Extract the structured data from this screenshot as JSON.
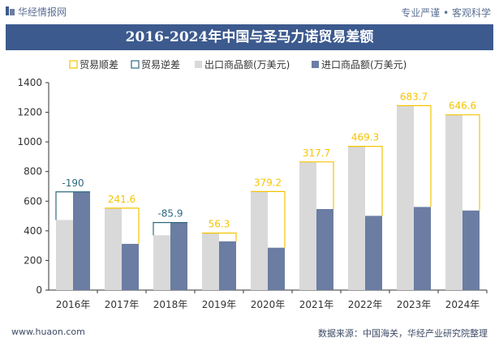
{
  "header": {
    "site_name": "华经情报网",
    "slogan": "专业严谨 • 客观科学"
  },
  "footer": {
    "website": "www.huaon.com",
    "source": "数据来源：中国海关，华经产业研究院整理"
  },
  "colors": {
    "title_bg": "#3c5a8e",
    "export_bar": "#d9d9d9",
    "import_bar": "#6b7da3",
    "surplus": "#f5c400",
    "deficit": "#2e6a7e"
  },
  "chart_data": {
    "type": "bar",
    "title": "2016-2024年中国与圣马力诺贸易差额",
    "categories": [
      "2016年",
      "2017年",
      "2018年",
      "2019年",
      "2020年",
      "2021年",
      "2022年",
      "2023年",
      "2024年"
    ],
    "legend": [
      "贸易顺差",
      "贸易逆差",
      "出口商品额(万美元)",
      "进口商品额(万美元)"
    ],
    "legend_position": "top",
    "ylim": [
      0,
      1400
    ],
    "yticks": [
      0,
      200,
      400,
      600,
      800,
      1000,
      1200,
      1400
    ],
    "grid": false,
    "series": [
      {
        "name": "出口商品额(万美元)",
        "values": [
          473,
          553,
          370,
          385,
          665,
          865,
          970,
          1245,
          1183
        ]
      },
      {
        "name": "进口商品额(万美元)",
        "values": [
          663,
          312,
          456,
          329,
          286,
          547,
          501,
          561,
          537
        ]
      }
    ],
    "balance": [
      -190,
      241.6,
      -85.9,
      56.3,
      379.2,
      317.7,
      469.3,
      683.7,
      646.6
    ],
    "balance_labels": [
      "-190",
      "241.6",
      "-85.9",
      "56.3",
      "379.2",
      "317.7",
      "469.3",
      "683.7",
      "646.6"
    ]
  }
}
